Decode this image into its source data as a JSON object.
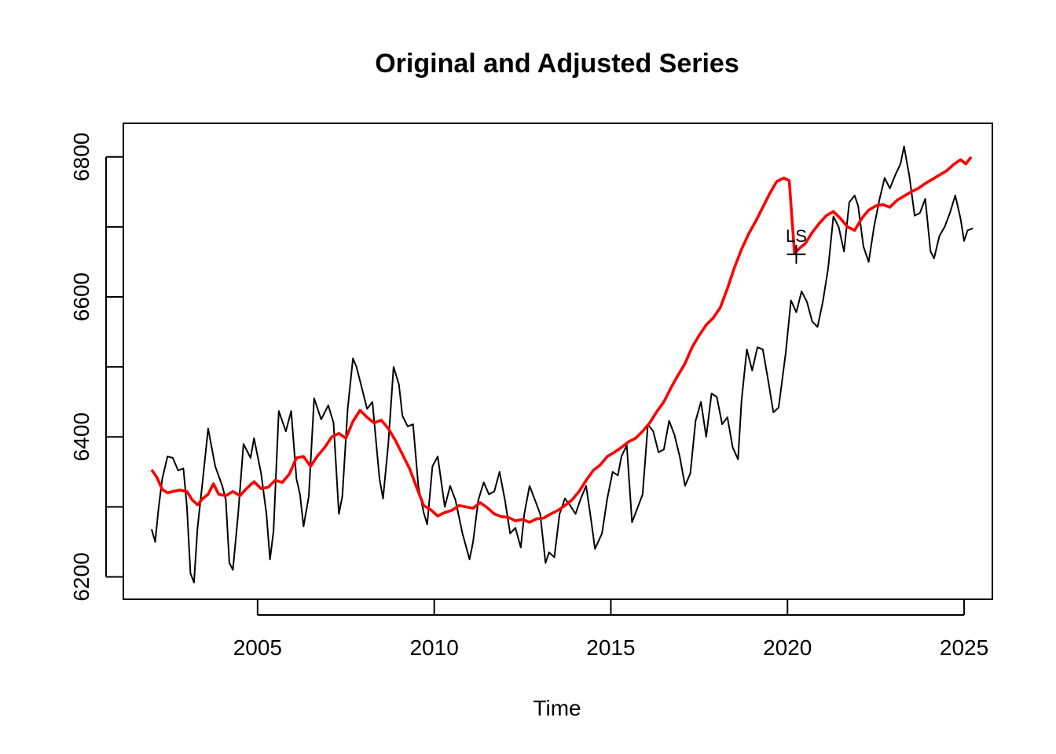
{
  "chart_data": {
    "type": "line",
    "title": "Original and Adjusted Series",
    "xlabel": "Time",
    "ylabel": "",
    "xlim": [
      2001.2,
      2025.8
    ],
    "ylim": [
      6168,
      6848
    ],
    "xticks": [
      2005,
      2010,
      2015,
      2020,
      2025
    ],
    "yticks": [
      6200,
      6300,
      6400,
      6500,
      6600,
      6700,
      6800
    ],
    "ytick_labels": [
      "6200",
      "",
      "6400",
      "",
      "6600",
      "",
      "6800"
    ],
    "grid": false,
    "legend": "none",
    "annotations": [
      {
        "text": "LS",
        "x": 2020.25,
        "y": 6690
      }
    ],
    "series": [
      {
        "color": "#000000",
        "points": [
          [
            2002.0,
            6268
          ],
          [
            2002.1,
            6250
          ],
          [
            2002.2,
            6300
          ],
          [
            2002.3,
            6340
          ],
          [
            2002.45,
            6372
          ],
          [
            2002.6,
            6370
          ],
          [
            2002.75,
            6352
          ],
          [
            2002.9,
            6355
          ],
          [
            2003.0,
            6300
          ],
          [
            2003.1,
            6205
          ],
          [
            2003.2,
            6192
          ],
          [
            2003.3,
            6270
          ],
          [
            2003.45,
            6340
          ],
          [
            2003.6,
            6412
          ],
          [
            2003.8,
            6358
          ],
          [
            2004.0,
            6330
          ],
          [
            2004.1,
            6310
          ],
          [
            2004.2,
            6220
          ],
          [
            2004.3,
            6210
          ],
          [
            2004.45,
            6290
          ],
          [
            2004.6,
            6390
          ],
          [
            2004.8,
            6370
          ],
          [
            2004.9,
            6398
          ],
          [
            2005.1,
            6348
          ],
          [
            2005.25,
            6290
          ],
          [
            2005.35,
            6225
          ],
          [
            2005.45,
            6265
          ],
          [
            2005.6,
            6437
          ],
          [
            2005.8,
            6408
          ],
          [
            2005.95,
            6437
          ],
          [
            2006.1,
            6340
          ],
          [
            2006.2,
            6318
          ],
          [
            2006.3,
            6272
          ],
          [
            2006.45,
            6315
          ],
          [
            2006.6,
            6455
          ],
          [
            2006.8,
            6425
          ],
          [
            2007.0,
            6445
          ],
          [
            2007.15,
            6420
          ],
          [
            2007.3,
            6290
          ],
          [
            2007.4,
            6315
          ],
          [
            2007.55,
            6440
          ],
          [
            2007.7,
            6512
          ],
          [
            2007.8,
            6500
          ],
          [
            2007.95,
            6470
          ],
          [
            2008.1,
            6440
          ],
          [
            2008.25,
            6450
          ],
          [
            2008.45,
            6340
          ],
          [
            2008.55,
            6312
          ],
          [
            2008.7,
            6390
          ],
          [
            2008.85,
            6500
          ],
          [
            2009.0,
            6475
          ],
          [
            2009.1,
            6430
          ],
          [
            2009.25,
            6415
          ],
          [
            2009.4,
            6418
          ],
          [
            2009.55,
            6330
          ],
          [
            2009.7,
            6292
          ],
          [
            2009.8,
            6275
          ],
          [
            2009.95,
            6358
          ],
          [
            2010.1,
            6372
          ],
          [
            2010.3,
            6300
          ],
          [
            2010.45,
            6330
          ],
          [
            2010.6,
            6310
          ],
          [
            2010.8,
            6262
          ],
          [
            2011.0,
            6225
          ],
          [
            2011.1,
            6250
          ],
          [
            2011.25,
            6310
          ],
          [
            2011.4,
            6335
          ],
          [
            2011.55,
            6318
          ],
          [
            2011.7,
            6322
          ],
          [
            2011.85,
            6350
          ],
          [
            2012.0,
            6310
          ],
          [
            2012.15,
            6262
          ],
          [
            2012.3,
            6270
          ],
          [
            2012.45,
            6242
          ],
          [
            2012.55,
            6290
          ],
          [
            2012.7,
            6330
          ],
          [
            2012.85,
            6310
          ],
          [
            2013.0,
            6290
          ],
          [
            2013.15,
            6220
          ],
          [
            2013.25,
            6235
          ],
          [
            2013.4,
            6228
          ],
          [
            2013.55,
            6290
          ],
          [
            2013.7,
            6312
          ],
          [
            2013.85,
            6302
          ],
          [
            2014.0,
            6290
          ],
          [
            2014.15,
            6312
          ],
          [
            2014.3,
            6330
          ],
          [
            2014.45,
            6278
          ],
          [
            2014.55,
            6240
          ],
          [
            2014.75,
            6262
          ],
          [
            2014.9,
            6312
          ],
          [
            2015.05,
            6350
          ],
          [
            2015.2,
            6345
          ],
          [
            2015.3,
            6372
          ],
          [
            2015.45,
            6388
          ],
          [
            2015.6,
            6278
          ],
          [
            2015.75,
            6298
          ],
          [
            2015.9,
            6318
          ],
          [
            2016.05,
            6418
          ],
          [
            2016.2,
            6408
          ],
          [
            2016.35,
            6378
          ],
          [
            2016.5,
            6382
          ],
          [
            2016.65,
            6423
          ],
          [
            2016.8,
            6403
          ],
          [
            2016.95,
            6372
          ],
          [
            2017.1,
            6330
          ],
          [
            2017.25,
            6348
          ],
          [
            2017.4,
            6423
          ],
          [
            2017.55,
            6450
          ],
          [
            2017.7,
            6400
          ],
          [
            2017.85,
            6462
          ],
          [
            2018.0,
            6457
          ],
          [
            2018.15,
            6418
          ],
          [
            2018.3,
            6428
          ],
          [
            2018.45,
            6385
          ],
          [
            2018.6,
            6368
          ],
          [
            2018.7,
            6452
          ],
          [
            2018.85,
            6525
          ],
          [
            2019.0,
            6495
          ],
          [
            2019.15,
            6528
          ],
          [
            2019.3,
            6525
          ],
          [
            2019.45,
            6482
          ],
          [
            2019.6,
            6435
          ],
          [
            2019.75,
            6442
          ],
          [
            2019.95,
            6520
          ],
          [
            2020.1,
            6595
          ],
          [
            2020.25,
            6578
          ],
          [
            2020.4,
            6608
          ],
          [
            2020.55,
            6593
          ],
          [
            2020.7,
            6565
          ],
          [
            2020.85,
            6557
          ],
          [
            2021.0,
            6593
          ],
          [
            2021.15,
            6640
          ],
          [
            2021.3,
            6715
          ],
          [
            2021.45,
            6700
          ],
          [
            2021.6,
            6665
          ],
          [
            2021.75,
            6735
          ],
          [
            2021.9,
            6745
          ],
          [
            2022.0,
            6730
          ],
          [
            2022.15,
            6672
          ],
          [
            2022.3,
            6650
          ],
          [
            2022.45,
            6700
          ],
          [
            2022.6,
            6738
          ],
          [
            2022.75,
            6770
          ],
          [
            2022.9,
            6755
          ],
          [
            2023.05,
            6774
          ],
          [
            2023.2,
            6790
          ],
          [
            2023.3,
            6815
          ],
          [
            2023.45,
            6773
          ],
          [
            2023.6,
            6716
          ],
          [
            2023.75,
            6720
          ],
          [
            2023.9,
            6740
          ],
          [
            2024.05,
            6665
          ],
          [
            2024.15,
            6655
          ],
          [
            2024.3,
            6687
          ],
          [
            2024.45,
            6700
          ],
          [
            2024.6,
            6720
          ],
          [
            2024.75,
            6745
          ],
          [
            2024.9,
            6712
          ],
          [
            2025.0,
            6680
          ],
          [
            2025.1,
            6695
          ],
          [
            2025.25,
            6698
          ]
        ]
      },
      {
        "color": "#ff0000",
        "points": [
          [
            2002.0,
            6353
          ],
          [
            2002.15,
            6342
          ],
          [
            2002.3,
            6325
          ],
          [
            2002.45,
            6320
          ],
          [
            2002.6,
            6322
          ],
          [
            2002.8,
            6324
          ],
          [
            2003.0,
            6322
          ],
          [
            2003.15,
            6310
          ],
          [
            2003.3,
            6303
          ],
          [
            2003.45,
            6312
          ],
          [
            2003.6,
            6318
          ],
          [
            2003.75,
            6333
          ],
          [
            2003.9,
            6318
          ],
          [
            2004.1,
            6316
          ],
          [
            2004.3,
            6322
          ],
          [
            2004.5,
            6316
          ],
          [
            2004.7,
            6327
          ],
          [
            2004.9,
            6336
          ],
          [
            2005.1,
            6326
          ],
          [
            2005.3,
            6328
          ],
          [
            2005.5,
            6338
          ],
          [
            2005.7,
            6335
          ],
          [
            2005.9,
            6347
          ],
          [
            2006.1,
            6370
          ],
          [
            2006.3,
            6372
          ],
          [
            2006.5,
            6358
          ],
          [
            2006.7,
            6373
          ],
          [
            2006.9,
            6385
          ],
          [
            2007.1,
            6400
          ],
          [
            2007.3,
            6405
          ],
          [
            2007.5,
            6398
          ],
          [
            2007.7,
            6422
          ],
          [
            2007.9,
            6438
          ],
          [
            2008.1,
            6428
          ],
          [
            2008.3,
            6420
          ],
          [
            2008.5,
            6424
          ],
          [
            2008.7,
            6412
          ],
          [
            2008.9,
            6395
          ],
          [
            2009.1,
            6375
          ],
          [
            2009.3,
            6355
          ],
          [
            2009.5,
            6328
          ],
          [
            2009.7,
            6302
          ],
          [
            2009.9,
            6296
          ],
          [
            2010.1,
            6287
          ],
          [
            2010.3,
            6292
          ],
          [
            2010.5,
            6295
          ],
          [
            2010.7,
            6302
          ],
          [
            2010.9,
            6300
          ],
          [
            2011.1,
            6298
          ],
          [
            2011.3,
            6306
          ],
          [
            2011.5,
            6299
          ],
          [
            2011.7,
            6290
          ],
          [
            2011.9,
            6286
          ],
          [
            2012.1,
            6285
          ],
          [
            2012.3,
            6280
          ],
          [
            2012.5,
            6282
          ],
          [
            2012.7,
            6278
          ],
          [
            2012.9,
            6283
          ],
          [
            2013.1,
            6284
          ],
          [
            2013.3,
            6290
          ],
          [
            2013.5,
            6295
          ],
          [
            2013.7,
            6302
          ],
          [
            2013.9,
            6310
          ],
          [
            2014.1,
            6322
          ],
          [
            2014.3,
            6338
          ],
          [
            2014.5,
            6352
          ],
          [
            2014.7,
            6360
          ],
          [
            2014.9,
            6372
          ],
          [
            2015.1,
            6378
          ],
          [
            2015.3,
            6385
          ],
          [
            2015.5,
            6393
          ],
          [
            2015.7,
            6398
          ],
          [
            2015.9,
            6408
          ],
          [
            2016.1,
            6420
          ],
          [
            2016.3,
            6436
          ],
          [
            2016.5,
            6450
          ],
          [
            2016.7,
            6470
          ],
          [
            2016.9,
            6488
          ],
          [
            2017.1,
            6505
          ],
          [
            2017.3,
            6528
          ],
          [
            2017.5,
            6545
          ],
          [
            2017.7,
            6560
          ],
          [
            2017.9,
            6570
          ],
          [
            2018.1,
            6585
          ],
          [
            2018.3,
            6612
          ],
          [
            2018.5,
            6642
          ],
          [
            2018.7,
            6668
          ],
          [
            2018.9,
            6690
          ],
          [
            2019.1,
            6708
          ],
          [
            2019.3,
            6728
          ],
          [
            2019.5,
            6748
          ],
          [
            2019.7,
            6765
          ],
          [
            2019.9,
            6770
          ],
          [
            2020.05,
            6766
          ],
          [
            2020.2,
            6662
          ],
          [
            2020.35,
            6670
          ],
          [
            2020.5,
            6676
          ],
          [
            2020.7,
            6692
          ],
          [
            2020.9,
            6705
          ],
          [
            2021.1,
            6716
          ],
          [
            2021.3,
            6722
          ],
          [
            2021.5,
            6712
          ],
          [
            2021.7,
            6700
          ],
          [
            2021.9,
            6695
          ],
          [
            2022.1,
            6712
          ],
          [
            2022.3,
            6724
          ],
          [
            2022.5,
            6730
          ],
          [
            2022.7,
            6732
          ],
          [
            2022.9,
            6728
          ],
          [
            2023.1,
            6738
          ],
          [
            2023.3,
            6744
          ],
          [
            2023.5,
            6750
          ],
          [
            2023.7,
            6755
          ],
          [
            2023.9,
            6762
          ],
          [
            2024.1,
            6768
          ],
          [
            2024.3,
            6774
          ],
          [
            2024.5,
            6780
          ],
          [
            2024.7,
            6789
          ],
          [
            2024.9,
            6796
          ],
          [
            2025.05,
            6790
          ],
          [
            2025.2,
            6800
          ]
        ]
      }
    ]
  }
}
